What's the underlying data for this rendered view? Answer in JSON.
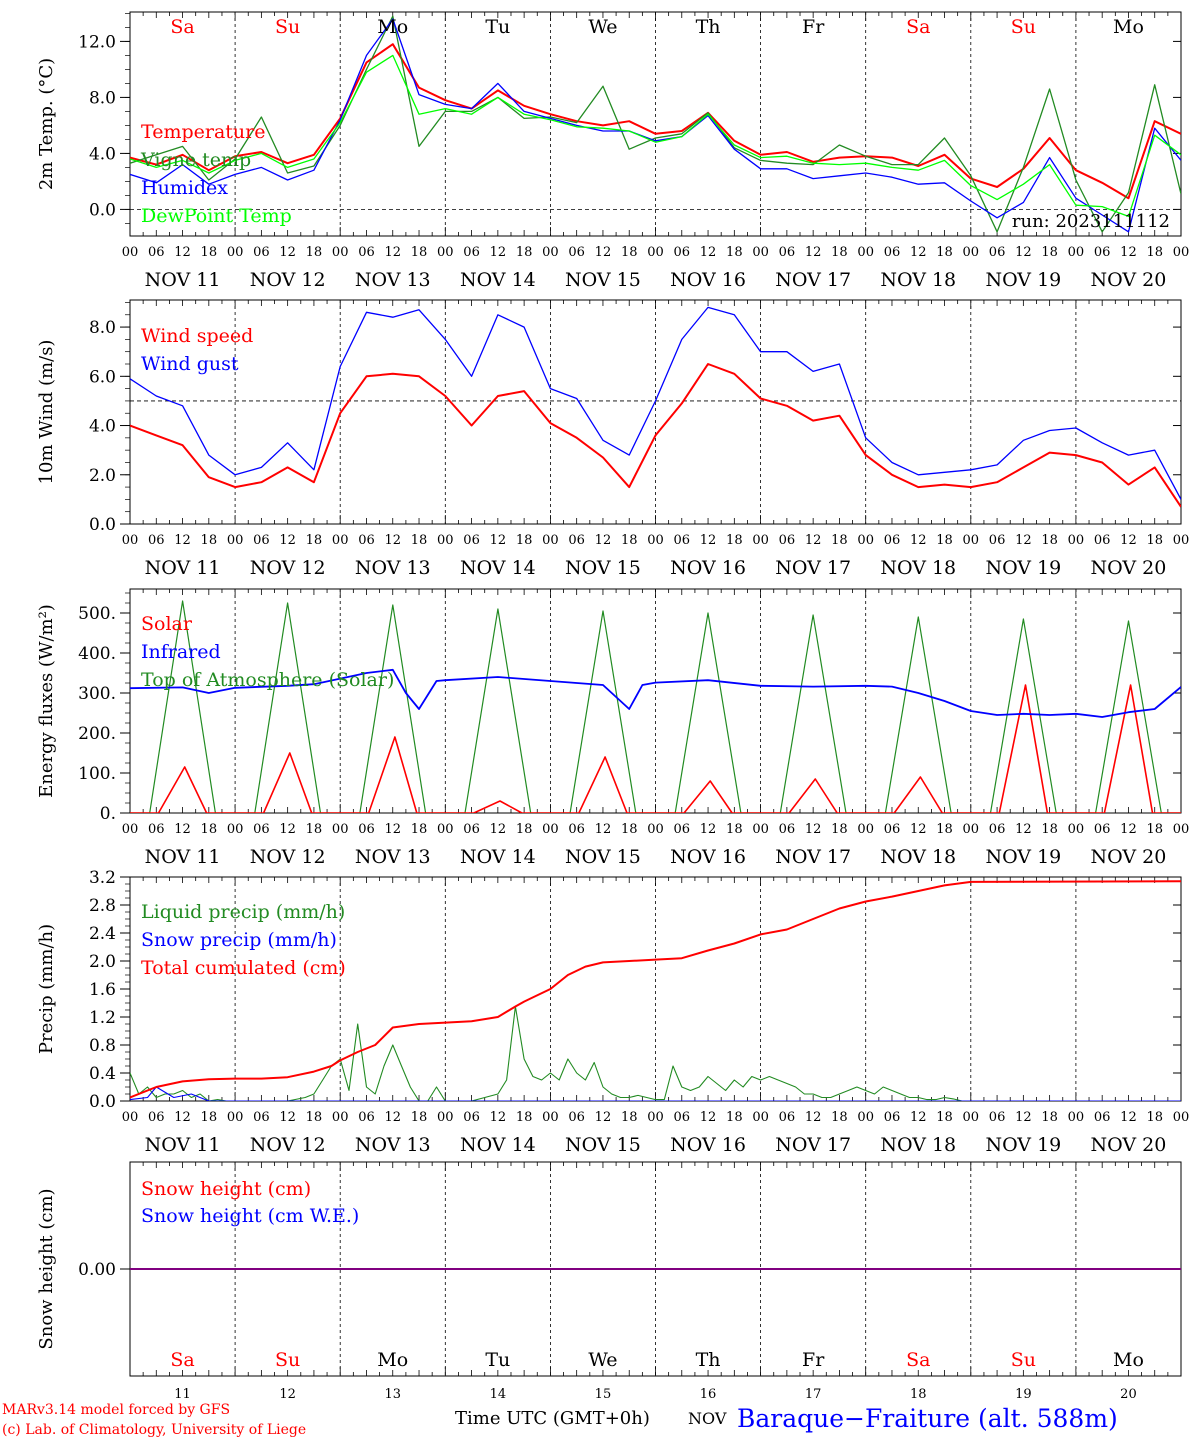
{
  "x_axis": {
    "hour_ticks": [
      "00",
      "06",
      "12",
      "18"
    ],
    "last_tick": "00",
    "date_labels": [
      "NOV 11",
      "NOV 12",
      "NOV 13",
      "NOV 14",
      "NOV 15",
      "NOV 16",
      "NOV 17",
      "NOV 18",
      "NOV 19",
      "NOV 20"
    ],
    "weekdays": [
      "Sa",
      "Su",
      "Mo",
      "Tu",
      "We",
      "Th",
      "Fr",
      "Sa",
      "Su",
      "Mo"
    ],
    "weekend_flags": [
      true,
      true,
      false,
      false,
      false,
      false,
      false,
      true,
      true,
      false
    ],
    "day_numbers": [
      "11",
      "12",
      "13",
      "14",
      "15",
      "16",
      "17",
      "18",
      "19",
      "20"
    ],
    "title": "Time UTC (GMT+0h)",
    "month": "NOV"
  },
  "footer": {
    "credit_line1": "MARv3.14 model forced by GFS",
    "credit_line2": "(c) Lab. of Climatology, University of Liege",
    "station": "Baraque−Fraiture (alt. 588m)"
  },
  "colors": {
    "red": "#ff0000",
    "green": "#228b22",
    "blue": "#0000ff",
    "lime": "#00ff00",
    "purple": "#800080"
  },
  "chart_data": [
    {
      "id": "temp",
      "type": "line",
      "ylabel": "2m Temp. (°C)",
      "ylim": [
        -1.9,
        14.1
      ],
      "yticks": [
        {
          "v": 0,
          "t": "0.0"
        },
        {
          "v": 4,
          "t": "4.0"
        },
        {
          "v": 8,
          "t": "8.0"
        },
        {
          "v": 12,
          "t": "12.0"
        }
      ],
      "dashed_y": 0,
      "legend": [
        "Temperature",
        "Vigne temp",
        "Humidex",
        "DewPoint Temp"
      ],
      "annotation": "run: 2023111112",
      "x": [
        0,
        6,
        12,
        18,
        24,
        30,
        36,
        42,
        48,
        54,
        60,
        66,
        72,
        78,
        84,
        90,
        96,
        102,
        108,
        114,
        120,
        126,
        132,
        138,
        144,
        150,
        156,
        162,
        168,
        174,
        180,
        186,
        192,
        198,
        204,
        210,
        216,
        222,
        228,
        234,
        240
      ],
      "series": [
        {
          "name": "Temperature",
          "color": "red",
          "values": [
            3.7,
            3.2,
            3.9,
            2.8,
            3.8,
            4.1,
            3.3,
            3.9,
            6.5,
            10.5,
            11.8,
            8.7,
            7.8,
            7.2,
            8.5,
            7.4,
            6.8,
            6.3,
            6.0,
            6.3,
            5.4,
            5.6,
            6.9,
            4.9,
            3.9,
            4.1,
            3.4,
            3.7,
            3.8,
            3.7,
            3.1,
            3.9,
            2.2,
            1.6,
            2.9,
            5.1,
            2.8,
            1.9,
            0.8,
            6.3,
            5.4
          ]
        },
        {
          "name": "Vigne temp",
          "color": "green",
          "values": [
            3.3,
            3.9,
            4.5,
            2.1,
            3.6,
            6.6,
            2.6,
            3.1,
            6.0,
            10.0,
            13.8,
            4.5,
            7.0,
            7.0,
            8.0,
            6.5,
            6.6,
            6.2,
            8.8,
            4.3,
            5.1,
            5.4,
            6.9,
            4.4,
            3.5,
            3.3,
            3.2,
            4.6,
            3.8,
            3.2,
            3.2,
            5.1,
            2.4,
            -1.6,
            3.0,
            8.6,
            2.1,
            -1.6,
            1.2,
            8.9,
            1.1
          ]
        },
        {
          "name": "Humidex",
          "color": "blue",
          "values": [
            2.5,
            1.9,
            3.2,
            1.8,
            2.5,
            3.0,
            2.1,
            2.8,
            6.4,
            11.0,
            13.6,
            8.2,
            7.5,
            7.2,
            9.0,
            7.0,
            6.5,
            6.0,
            5.6,
            5.6,
            4.9,
            5.2,
            6.7,
            4.3,
            2.9,
            2.9,
            2.2,
            2.4,
            2.6,
            2.3,
            1.8,
            1.9,
            0.6,
            -0.6,
            0.5,
            3.7,
            0.8,
            -0.4,
            -1.6,
            5.8,
            3.5
          ]
        },
        {
          "name": "DewPoint Temp",
          "color": "lime",
          "values": [
            3.6,
            3.0,
            3.5,
            2.6,
            3.5,
            4.0,
            3.0,
            3.6,
            6.2,
            9.8,
            11.0,
            6.8,
            7.2,
            6.8,
            8.0,
            6.8,
            6.4,
            5.9,
            5.8,
            5.6,
            4.8,
            5.2,
            6.8,
            4.6,
            3.7,
            3.8,
            3.3,
            3.2,
            3.3,
            3.0,
            2.8,
            3.5,
            1.7,
            0.7,
            1.8,
            3.2,
            0.3,
            0.2,
            -0.5,
            5.3,
            3.9
          ]
        }
      ]
    },
    {
      "id": "wind",
      "type": "line",
      "ylabel": "10m Wind (m/s)",
      "ylim": [
        0,
        9.1
      ],
      "yticks": [
        {
          "v": 0,
          "t": "0.0"
        },
        {
          "v": 2,
          "t": "2.0"
        },
        {
          "v": 4,
          "t": "4.0"
        },
        {
          "v": 6,
          "t": "6.0"
        },
        {
          "v": 8,
          "t": "8.0"
        }
      ],
      "dashed_y": 5,
      "legend": [
        "Wind speed",
        "Wind gust"
      ],
      "x": [
        0,
        6,
        12,
        18,
        24,
        30,
        36,
        42,
        48,
        54,
        60,
        66,
        72,
        78,
        84,
        90,
        96,
        102,
        108,
        114,
        120,
        126,
        132,
        138,
        144,
        150,
        156,
        162,
        168,
        174,
        180,
        186,
        192,
        198,
        204,
        210,
        216,
        222,
        228,
        234,
        240
      ],
      "series": [
        {
          "name": "Wind speed",
          "color": "red",
          "values": [
            4.0,
            3.6,
            3.2,
            1.9,
            1.5,
            1.7,
            2.3,
            1.7,
            4.5,
            6.0,
            6.1,
            6.0,
            5.2,
            4.0,
            5.2,
            5.4,
            4.1,
            3.5,
            2.7,
            1.5,
            3.6,
            4.9,
            6.5,
            6.1,
            5.1,
            4.8,
            4.2,
            4.4,
            2.8,
            2.0,
            1.5,
            1.6,
            1.5,
            1.7,
            2.3,
            2.9,
            2.8,
            2.5,
            1.6,
            2.3,
            0.7
          ]
        },
        {
          "name": "Wind gust",
          "color": "blue",
          "values": [
            5.9,
            5.2,
            4.8,
            2.8,
            2.0,
            2.3,
            3.3,
            2.2,
            6.4,
            8.6,
            8.4,
            8.7,
            7.5,
            6.0,
            8.5,
            8.0,
            5.5,
            5.1,
            3.4,
            2.8,
            5.0,
            7.5,
            8.8,
            8.5,
            7.0,
            7.0,
            6.2,
            6.5,
            3.5,
            2.5,
            2.0,
            2.1,
            2.2,
            2.4,
            3.4,
            3.8,
            3.9,
            3.3,
            2.8,
            3.0,
            1.0
          ]
        }
      ]
    },
    {
      "id": "flux",
      "type": "line",
      "ylabel": "Energy fluxes (W/m²)",
      "ylim": [
        0,
        560
      ],
      "yticks": [
        {
          "v": 0,
          "t": "0."
        },
        {
          "v": 100,
          "t": "100."
        },
        {
          "v": 200,
          "t": "200."
        },
        {
          "v": 300,
          "t": "300."
        },
        {
          "v": 400,
          "t": "400."
        },
        {
          "v": 500,
          "t": "500."
        }
      ],
      "legend": [
        "Solar",
        "Infrared",
        "Top of Atmosphere (Solar)"
      ],
      "toa_peaks": [
        530,
        525,
        520,
        510,
        505,
        500,
        495,
        490,
        485,
        480
      ],
      "solar_peaks": [
        115,
        150,
        190,
        30,
        140,
        80,
        85,
        90,
        320,
        320
      ],
      "infrared": {
        "x": [
          0,
          12,
          18,
          24,
          36,
          42,
          48,
          54,
          60,
          63,
          66,
          70,
          72,
          84,
          96,
          102,
          108,
          114,
          117,
          120,
          132,
          144,
          156,
          168,
          174,
          180,
          186,
          192,
          198,
          204,
          210,
          216,
          222,
          228,
          234,
          240
        ],
        "values": [
          312,
          314,
          300,
          313,
          318,
          322,
          336,
          350,
          358,
          300,
          260,
          330,
          332,
          340,
          330,
          325,
          320,
          260,
          320,
          326,
          332,
          318,
          316,
          318,
          316,
          300,
          280,
          255,
          245,
          248,
          245,
          248,
          240,
          252,
          260,
          315
        ]
      }
    },
    {
      "id": "precip",
      "type": "line",
      "ylabel": "Precip (mm/h)",
      "ylim": [
        0,
        3.2
      ],
      "yticks": [
        {
          "v": 0,
          "t": "0.0"
        },
        {
          "v": 0.4,
          "t": "0.4"
        },
        {
          "v": 0.8,
          "t": "0.8"
        },
        {
          "v": 1.2,
          "t": "1.2"
        },
        {
          "v": 1.6,
          "t": "1.6"
        },
        {
          "v": 2,
          "t": "2.0"
        },
        {
          "v": 2.4,
          "t": "2.4"
        },
        {
          "v": 2.8,
          "t": "2.8"
        },
        {
          "v": 3.2,
          "t": "3.2"
        }
      ],
      "legend": [
        "Liquid precip (mm/h)",
        "Snow precip (mm/h)",
        "Total cumulated (cm)"
      ],
      "series": [
        {
          "name": "Liquid precip (mm/h)",
          "color": "green",
          "x": [
            0,
            2,
            4,
            6,
            8,
            10,
            12,
            14,
            16,
            18,
            20,
            22,
            24,
            30,
            36,
            40,
            42,
            44,
            46,
            48,
            50,
            52,
            54,
            56,
            58,
            60,
            62,
            64,
            66,
            68,
            70,
            72,
            78,
            84,
            86,
            88,
            90,
            92,
            94,
            96,
            98,
            100,
            102,
            104,
            106,
            108,
            110,
            112,
            114,
            116,
            118,
            120,
            122,
            124,
            126,
            128,
            130,
            132,
            134,
            136,
            138,
            140,
            142,
            144,
            146,
            148,
            150,
            152,
            154,
            156,
            158,
            160,
            162,
            164,
            166,
            168,
            170,
            172,
            174,
            176,
            178,
            180,
            182,
            184,
            186,
            188,
            190,
            240
          ],
          "values": [
            0.4,
            0.1,
            0.2,
            0.05,
            0.1,
            0.1,
            0.15,
            0.05,
            0.1,
            0,
            0.02,
            0,
            0,
            0,
            0,
            0.05,
            0.1,
            0.3,
            0.5,
            0.6,
            0.15,
            1.1,
            0.2,
            0.1,
            0.5,
            0.8,
            0.5,
            0.2,
            0,
            0,
            0.2,
            0,
            0,
            0.1,
            0.3,
            1.35,
            0.6,
            0.35,
            0.3,
            0.4,
            0.3,
            0.6,
            0.4,
            0.3,
            0.55,
            0.2,
            0.1,
            0.05,
            0.05,
            0.08,
            0.05,
            0.02,
            0.02,
            0.5,
            0.2,
            0.15,
            0.2,
            0.35,
            0.25,
            0.15,
            0.3,
            0.2,
            0.35,
            0.3,
            0.35,
            0.3,
            0.25,
            0.2,
            0.1,
            0.1,
            0.05,
            0.05,
            0.1,
            0.15,
            0.2,
            0.15,
            0.1,
            0.2,
            0.15,
            0.1,
            0.05,
            0.05,
            0.02,
            0.02,
            0.05,
            0.03,
            0,
            0
          ]
        },
        {
          "name": "Snow precip (mm/h)",
          "color": "blue",
          "x": [
            0,
            4,
            6,
            10,
            14,
            18,
            24,
            240
          ],
          "values": [
            0.02,
            0.05,
            0.2,
            0.05,
            0.1,
            0,
            0,
            0
          ]
        },
        {
          "name": "Total cumulated (cm)",
          "color": "red",
          "x": [
            0,
            6,
            12,
            18,
            24,
            30,
            36,
            42,
            46,
            48,
            52,
            56,
            60,
            66,
            72,
            78,
            84,
            88,
            90,
            92,
            96,
            100,
            104,
            108,
            114,
            120,
            126,
            132,
            138,
            144,
            150,
            156,
            162,
            168,
            174,
            180,
            186,
            192,
            240
          ],
          "values": [
            0.05,
            0.2,
            0.28,
            0.31,
            0.32,
            0.32,
            0.34,
            0.42,
            0.5,
            0.58,
            0.7,
            0.8,
            1.05,
            1.1,
            1.12,
            1.14,
            1.2,
            1.35,
            1.42,
            1.48,
            1.6,
            1.8,
            1.92,
            1.98,
            2.0,
            2.02,
            2.04,
            2.15,
            2.25,
            2.38,
            2.45,
            2.6,
            2.75,
            2.85,
            2.92,
            3.0,
            3.08,
            3.13,
            3.14
          ]
        }
      ]
    },
    {
      "id": "snow",
      "type": "line",
      "ylabel": "Snow height (cm)",
      "ylim": [
        -1,
        1
      ],
      "yticks": [
        {
          "v": 0,
          "t": "0.00"
        }
      ],
      "legend": [
        "Snow height (cm)",
        "Snow height (cm W.E.)"
      ],
      "flat_value": 0
    }
  ]
}
